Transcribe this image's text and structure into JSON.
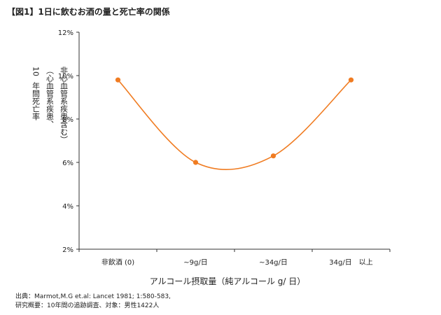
{
  "figure": {
    "title": "【図1】1日に飲むお酒の量と死亡率の関係"
  },
  "chart_data": {
    "type": "line",
    "categories": [
      "非飲酒 (0)",
      "~9g/日",
      "~34g/日",
      "34g/日　以上"
    ],
    "values": [
      9.8,
      6.0,
      6.3,
      9.8
    ],
    "ylim": [
      2,
      12
    ],
    "yticks": [
      "2%",
      "4%",
      "6%",
      "8%",
      "10%",
      "12%"
    ],
    "xlabel": "アルコール摂取量（純アルコール g/ 日）",
    "ylabel_lines": [
      "10",
      "年間死亡率",
      "（心血管系疾患、",
      "非心血管系疾患含む）"
    ],
    "grid": false,
    "smooth": true,
    "color": "#f07c22"
  },
  "source": {
    "line1": "出典：Marmot,M.G et.al: Lancet 1981; 1:580-583,",
    "line2": "研究概要：10年間の追跡調査、対象：男性1422人"
  }
}
